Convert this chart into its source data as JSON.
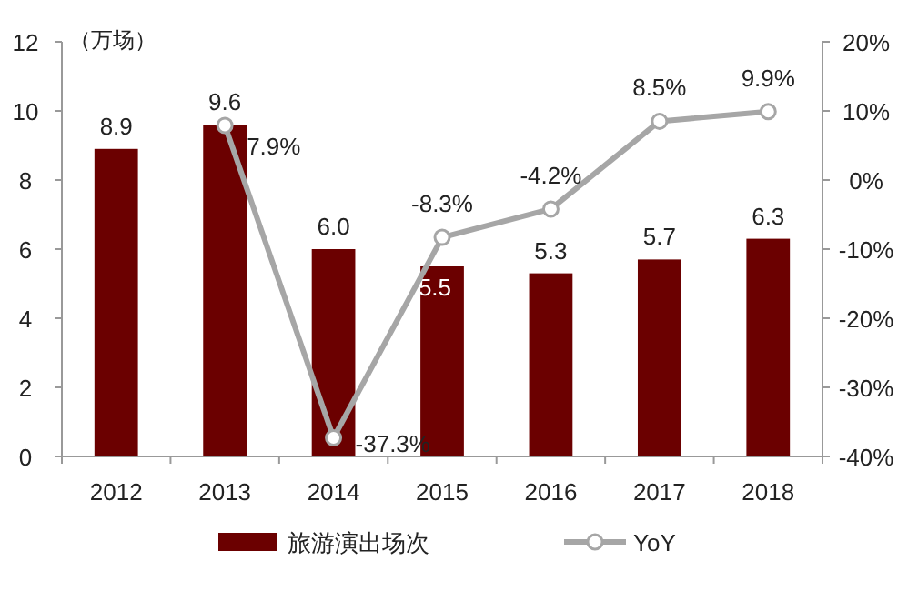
{
  "chart_data": {
    "type": "bar",
    "ylabel": "（万场）",
    "categories": [
      "2012",
      "2013",
      "2014",
      "2015",
      "2016",
      "2017",
      "2018"
    ],
    "ylim": [
      0,
      12
    ],
    "yticks": [
      0,
      2,
      4,
      6,
      8,
      10,
      12
    ],
    "y2lim": [
      -40,
      20
    ],
    "y2ticks": [
      {
        "value": -40,
        "label": "-40%"
      },
      {
        "value": -30,
        "label": "-30%"
      },
      {
        "value": -20,
        "label": "-20%"
      },
      {
        "value": -10,
        "label": "-10%"
      },
      {
        "value": 0,
        "label": "0%"
      },
      {
        "value": 10,
        "label": "10%"
      },
      {
        "value": 20,
        "label": "20%"
      }
    ],
    "legend": "bottom",
    "grid": false,
    "series": [
      {
        "name": "旅游演出场次",
        "color": "#6b0000",
        "values": [
          8.9,
          9.6,
          6.0,
          5.5,
          5.3,
          5.7,
          6.3
        ],
        "value_labels": [
          "8.9",
          "9.6",
          "6.0",
          "5.5",
          "5.3",
          "5.7",
          "6.3"
        ]
      },
      {
        "name": "YoY",
        "type": "line",
        "axis": "y2",
        "color": "#a6a6a6",
        "marker": "circle",
        "values": [
          null,
          7.9,
          -37.3,
          -8.3,
          -4.2,
          8.5,
          9.9
        ],
        "value_labels": [
          null,
          "7.9%",
          "-37.3%",
          "-8.3%",
          "-4.2%",
          "8.5%",
          "9.9%"
        ]
      }
    ]
  }
}
